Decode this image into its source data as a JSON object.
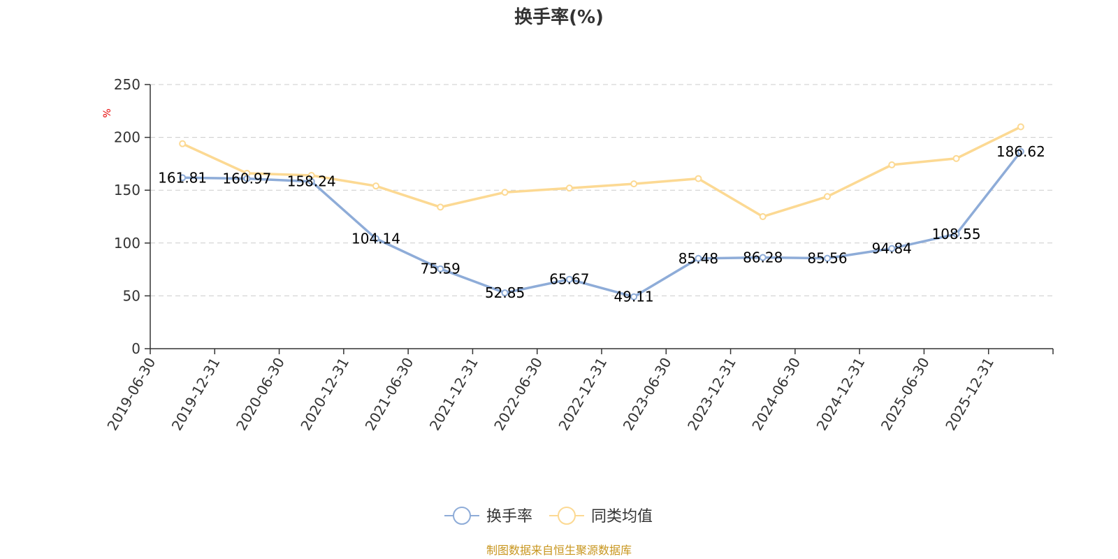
{
  "chart_data": {
    "type": "line",
    "title": "换手率(%)",
    "ylabel": "%",
    "xlabel": "",
    "ylim": [
      0,
      250
    ],
    "yticks": [
      0,
      50,
      100,
      150,
      200,
      250
    ],
    "grid": true,
    "legend_position": "bottom-center",
    "categories": [
      "2019-06-30",
      "2019-12-31",
      "2020-06-30",
      "2020-12-31",
      "2021-06-30",
      "2021-12-31",
      "2022-06-30",
      "2022-12-31",
      "2023-06-30",
      "2023-12-31",
      "2024-06-30",
      "2024-12-31",
      "2025-06-30",
      "2025-12-31"
    ],
    "series": [
      {
        "name": "换手率",
        "color": "#8eacd8",
        "show_labels": true,
        "values": [
          161.81,
          160.97,
          158.24,
          104.14,
          75.59,
          52.85,
          65.67,
          49.11,
          85.48,
          86.28,
          85.56,
          94.84,
          108.55,
          186.62
        ]
      },
      {
        "name": "同类均值",
        "color": "#fcd993",
        "show_labels": false,
        "values": [
          194,
          166,
          164,
          154,
          134,
          148,
          152,
          156,
          161,
          125,
          144,
          174,
          180,
          210
        ]
      }
    ],
    "source": "制图数据来自恒生聚源数据库"
  }
}
